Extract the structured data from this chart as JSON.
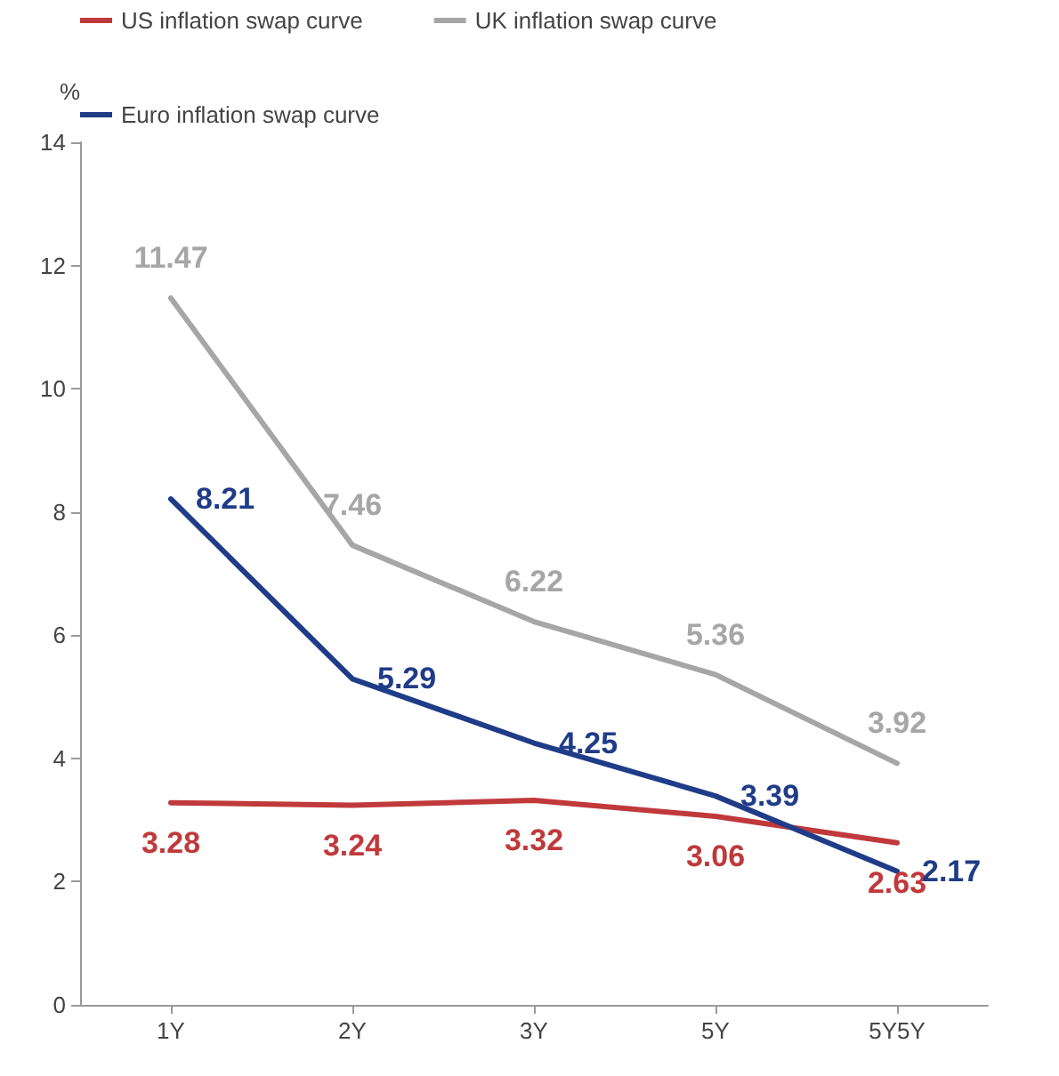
{
  "chart_data": {
    "type": "line",
    "ylabel": "%",
    "categories": [
      "1Y",
      "2Y",
      "3Y",
      "5Y",
      "5Y5Y"
    ],
    "series": [
      {
        "name": "US inflation swap curve",
        "color": "#c0393b",
        "values": [
          3.28,
          3.24,
          3.32,
          3.06,
          2.63
        ]
      },
      {
        "name": "UK inflation swap curve",
        "color": "#a6a6a6",
        "values": [
          11.47,
          7.46,
          6.22,
          5.36,
          3.92
        ]
      },
      {
        "name": "Euro inflation swap curve",
        "color": "#1f3c88",
        "values": [
          8.21,
          5.29,
          4.25,
          3.39,
          2.17
        ]
      }
    ],
    "ylim": [
      0,
      14
    ],
    "yticks": [
      0,
      2,
      4,
      6,
      8,
      10,
      12,
      14
    ],
    "grid": false,
    "legend": "top left",
    "marker": "none",
    "line_style": "solid",
    "data_labels": true
  }
}
